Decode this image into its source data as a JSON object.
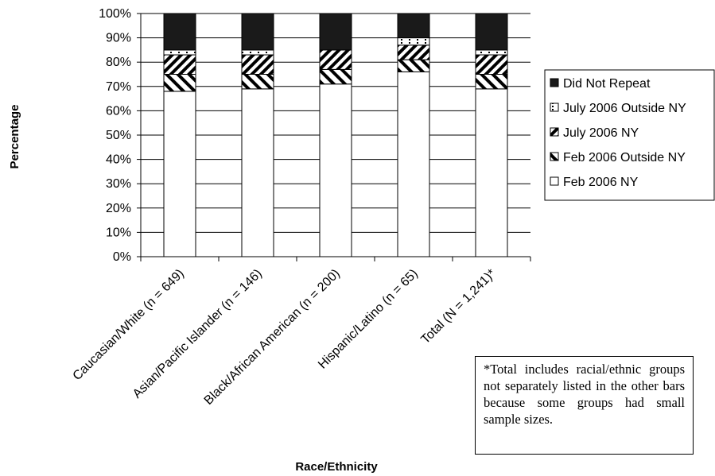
{
  "chart_data": {
    "type": "bar",
    "stacked": true,
    "categories": [
      "Caucasian/White (n = 649)",
      "Asian/Pacific Islander (n = 146)",
      "Black/African American (n = 200)",
      "Hispanic/Latino (n = 65)",
      "Total (N = 1,241)*"
    ],
    "series": [
      {
        "name": "Feb 2006 NY",
        "values": [
          68,
          69,
          71,
          76,
          69
        ]
      },
      {
        "name": "Feb 2006 Outside NY",
        "values": [
          7,
          6,
          6,
          5,
          6
        ]
      },
      {
        "name": "July 2006 NY",
        "values": [
          8,
          8,
          8,
          6,
          8
        ]
      },
      {
        "name": "July 2006 Outside NY",
        "values": [
          2,
          2,
          0,
          3,
          2
        ]
      },
      {
        "name": "Did Not Repeat",
        "values": [
          15,
          15,
          15,
          10,
          15
        ]
      }
    ],
    "xlabel": "Race/Ethnicity",
    "ylabel": "Percentage",
    "ylim": [
      0,
      100
    ],
    "yticks": [
      "0%",
      "10%",
      "20%",
      "30%",
      "40%",
      "50%",
      "60%",
      "70%",
      "80%",
      "90%",
      "100%"
    ],
    "grid": true,
    "legend_position": "right"
  },
  "footnote": "*Total includes racial/ethnic groups not separately listed in the other bars because some groups had small sample sizes."
}
